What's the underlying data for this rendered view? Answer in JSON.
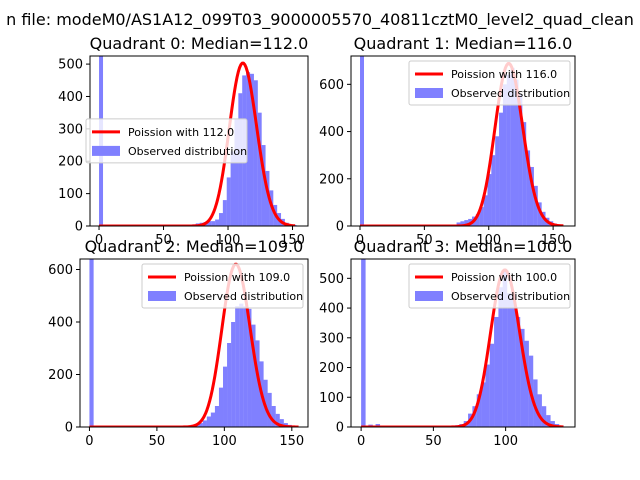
{
  "suptitle": "n file: modeM0/AS1A12_099T03_9000005570_40811cztM0_level2_quad_clean",
  "colors": {
    "poisson_line": "#ff0000",
    "hist_fill": "#8080ff",
    "axes": "#000000",
    "background": "#ffffff"
  },
  "chart_data": [
    {
      "type": "bar",
      "title": "Quadrant 0: Median=112.0",
      "legend_position": "center-left",
      "xlim": [
        -7,
        162
      ],
      "ylim": [
        0,
        525
      ],
      "xticks": [
        0,
        50,
        100,
        150
      ],
      "yticks": [
        0,
        100,
        200,
        300,
        400,
        500
      ],
      "median": 112,
      "series": [
        {
          "name": "Poission with 112.0",
          "kind": "line",
          "lambda": 112,
          "peak": 503,
          "x_range": [
            0,
            152
          ]
        },
        {
          "name": "Observed distribution",
          "kind": "histogram",
          "bin_width": 3.1,
          "bins": [
            [
              0,
              525
            ],
            [
              66,
              3
            ],
            [
              69,
              4
            ],
            [
              72,
              5
            ],
            [
              75,
              8
            ],
            [
              78,
              10
            ],
            [
              81,
              12
            ],
            [
              84,
              15
            ],
            [
              87,
              15
            ],
            [
              90,
              20
            ],
            [
              93,
              40
            ],
            [
              96,
              80
            ],
            [
              99,
              150
            ],
            [
              102,
              230
            ],
            [
              105,
              330
            ],
            [
              108,
              410
            ],
            [
              111,
              465
            ],
            [
              114,
              475
            ],
            [
              117,
              470
            ],
            [
              120,
              450
            ],
            [
              123,
              350
            ],
            [
              126,
              250
            ],
            [
              129,
              170
            ],
            [
              132,
              110
            ],
            [
              135,
              65
            ],
            [
              138,
              40
            ],
            [
              141,
              22
            ],
            [
              144,
              10
            ],
            [
              147,
              5
            ],
            [
              150,
              3
            ]
          ]
        }
      ]
    },
    {
      "type": "bar",
      "title": "Quadrant 1: Median=116.0",
      "legend_position": "upper-right",
      "xlim": [
        -7,
        167
      ],
      "ylim": [
        0,
        720
      ],
      "xticks": [
        0,
        50,
        100,
        150
      ],
      "yticks": [
        0,
        200,
        400,
        600
      ],
      "median": 116,
      "series": [
        {
          "name": "Poission with 116.0",
          "kind": "line",
          "lambda": 116,
          "peak": 688,
          "x_range": [
            0,
            158
          ]
        },
        {
          "name": "Observed distribution",
          "kind": "histogram",
          "bin_width": 3.1,
          "bins": [
            [
              0,
              720
            ],
            [
              75,
              15
            ],
            [
              78,
              20
            ],
            [
              81,
              25
            ],
            [
              84,
              30
            ],
            [
              87,
              40
            ],
            [
              90,
              50
            ],
            [
              93,
              80
            ],
            [
              96,
              130
            ],
            [
              99,
              220
            ],
            [
              102,
              300
            ],
            [
              105,
              380
            ],
            [
              108,
              480
            ],
            [
              111,
              600
            ],
            [
              114,
              640
            ],
            [
              117,
              670
            ],
            [
              120,
              620
            ],
            [
              123,
              560
            ],
            [
              126,
              440
            ],
            [
              129,
              320
            ],
            [
              132,
              250
            ],
            [
              135,
              170
            ],
            [
              138,
              100
            ],
            [
              141,
              60
            ],
            [
              144,
              35
            ],
            [
              147,
              20
            ],
            [
              150,
              10
            ],
            [
              153,
              5
            ]
          ]
        }
      ]
    },
    {
      "type": "bar",
      "title": "Quadrant 2: Median=109.0",
      "legend_position": "upper-right",
      "xlim": [
        -7,
        162
      ],
      "ylim": [
        0,
        640
      ],
      "xticks": [
        0,
        50,
        100,
        150
      ],
      "yticks": [
        0,
        200,
        400,
        600
      ],
      "median": 109,
      "series": [
        {
          "name": "Poission with 109.0",
          "kind": "line",
          "lambda": 109,
          "peak": 620,
          "x_range": [
            0,
            155
          ]
        },
        {
          "name": "Observed distribution",
          "kind": "histogram",
          "bin_width": 3.1,
          "bins": [
            [
              0,
              640
            ],
            [
              72,
              5
            ],
            [
              75,
              8
            ],
            [
              78,
              10
            ],
            [
              81,
              15
            ],
            [
              84,
              25
            ],
            [
              87,
              40
            ],
            [
              90,
              55
            ],
            [
              93,
              80
            ],
            [
              96,
              150
            ],
            [
              99,
              230
            ],
            [
              102,
              320
            ],
            [
              105,
              400
            ],
            [
              108,
              460
            ],
            [
              111,
              470
            ],
            [
              114,
              460
            ],
            [
              117,
              450
            ],
            [
              120,
              390
            ],
            [
              123,
              330
            ],
            [
              126,
              250
            ],
            [
              129,
              180
            ],
            [
              132,
              130
            ],
            [
              135,
              80
            ],
            [
              138,
              50
            ],
            [
              141,
              30
            ],
            [
              144,
              15
            ],
            [
              147,
              8
            ],
            [
              150,
              5
            ]
          ]
        }
      ]
    },
    {
      "type": "bar",
      "title": "Quadrant 3: Median=100.0",
      "legend_position": "upper-right",
      "xlim": [
        -7,
        148
      ],
      "ylim": [
        0,
        565
      ],
      "xticks": [
        0,
        50,
        100
      ],
      "yticks": [
        0,
        100,
        200,
        300,
        400,
        500
      ],
      "median": 100,
      "series": [
        {
          "name": "Poission with 100.0",
          "kind": "line",
          "lambda": 100,
          "peak": 528,
          "x_range": [
            0,
            140
          ]
        },
        {
          "name": "Observed distribution",
          "kind": "histogram",
          "bin_width": 3.1,
          "bins": [
            [
              0,
              565
            ],
            [
              5,
              8
            ],
            [
              10,
              10
            ],
            [
              62,
              4
            ],
            [
              65,
              6
            ],
            [
              68,
              10
            ],
            [
              71,
              20
            ],
            [
              74,
              45
            ],
            [
              77,
              70
            ],
            [
              80,
              110
            ],
            [
              83,
              150
            ],
            [
              86,
              210
            ],
            [
              89,
              280
            ],
            [
              92,
              370
            ],
            [
              95,
              470
            ],
            [
              98,
              530
            ],
            [
              101,
              450
            ],
            [
              104,
              430
            ],
            [
              107,
              370
            ],
            [
              110,
              330
            ],
            [
              113,
              290
            ],
            [
              116,
              240
            ],
            [
              119,
              160
            ],
            [
              122,
              110
            ],
            [
              125,
              70
            ],
            [
              128,
              40
            ],
            [
              131,
              20
            ],
            [
              134,
              10
            ],
            [
              137,
              5
            ]
          ]
        }
      ]
    }
  ]
}
